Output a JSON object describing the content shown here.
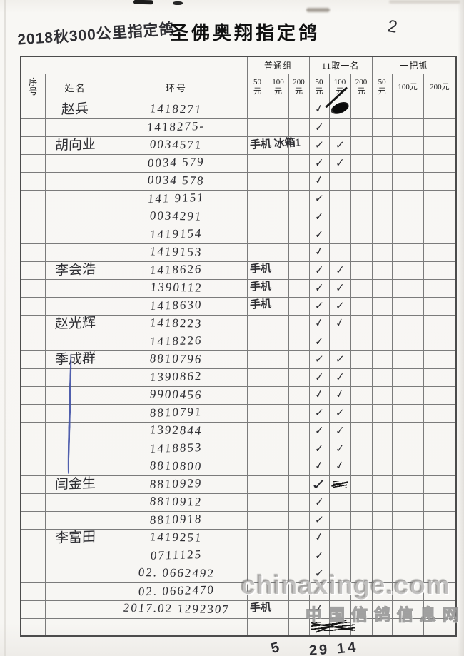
{
  "page": {
    "handwritten_title": "2018秋300公里指定鸽",
    "printed_title": "圣佛奥翔指定鸽",
    "page_number": "2"
  },
  "table": {
    "col_serial": "序号",
    "col_name": "姓名",
    "col_ring": "环号",
    "groups": [
      {
        "label": "普通组",
        "cols": [
          "50元",
          "100元",
          "200元"
        ]
      },
      {
        "label": "11取一名",
        "cols": [
          "50元",
          "100元",
          "200元"
        ]
      },
      {
        "label": "一把抓",
        "cols": [
          "50元",
          "100元",
          "200元"
        ]
      }
    ],
    "rows": [
      {
        "name": "赵兵",
        "ring": "1418271",
        "note": "",
        "marks": {
          "e50": "check",
          "e100": "blob"
        }
      },
      {
        "name": "",
        "ring": "1418275-",
        "note": "",
        "marks": {
          "e50": "check"
        }
      },
      {
        "name": "胡向业",
        "ring": "0034571",
        "note": "手机 冰箱1",
        "marks": {
          "e50": "check",
          "e100": "check"
        }
      },
      {
        "name": "",
        "ring": "0034 579",
        "note": "",
        "marks": {
          "e50": "check",
          "e100": "check"
        }
      },
      {
        "name": "",
        "ring": "0034 578",
        "note": "",
        "marks": {
          "e50": "check"
        }
      },
      {
        "name": "",
        "ring": "141 9151",
        "note": "",
        "marks": {
          "e50": "check"
        }
      },
      {
        "name": "",
        "ring": "0034291",
        "note": "",
        "marks": {
          "e50": "check"
        }
      },
      {
        "name": "",
        "ring": "1419154",
        "note": "",
        "marks": {
          "e50": "check"
        }
      },
      {
        "name": "",
        "ring": "1419153",
        "note": "",
        "marks": {
          "e50": "check"
        }
      },
      {
        "name": "李会浩",
        "ring": "1418626",
        "note": "手机",
        "marks": {
          "e50": "check",
          "e100": "check"
        }
      },
      {
        "name": "",
        "ring": "1390112",
        "note": "手机",
        "marks": {
          "e50": "check",
          "e100": "check"
        }
      },
      {
        "name": "",
        "ring": "1418630",
        "note": "手机",
        "marks": {
          "e50": "check",
          "e100": "check"
        }
      },
      {
        "name": "赵光辉",
        "ring": "1418223",
        "note": "",
        "marks": {
          "e50": "check",
          "e100": "check"
        }
      },
      {
        "name": "",
        "ring": "1418226",
        "note": "",
        "marks": {
          "e50": "check"
        }
      },
      {
        "name": "季成群",
        "ring": "8810796",
        "note": "",
        "marks": {
          "e50": "check",
          "e100": "check"
        }
      },
      {
        "name": "",
        "ring": "1390862",
        "note": "",
        "marks": {
          "e50": "check",
          "e100": "check"
        }
      },
      {
        "name": "",
        "ring": "9900456",
        "note": "",
        "marks": {
          "e50": "check",
          "e100": "check"
        }
      },
      {
        "name": "",
        "ring": "8810791",
        "note": "",
        "marks": {
          "e50": "check",
          "e100": "check"
        }
      },
      {
        "name": "",
        "ring": "1392844",
        "note": "",
        "marks": {
          "e50": "check",
          "e100": "check"
        }
      },
      {
        "name": "",
        "ring": "1418853",
        "note": "",
        "marks": {
          "e50": "check",
          "e100": "check"
        }
      },
      {
        "name": "",
        "ring": "8810800",
        "note": "",
        "marks": {
          "e50": "check",
          "e100": "check"
        }
      },
      {
        "name": "闫金生",
        "ring": "8810929",
        "note": "",
        "marks": {
          "e50": "check-bold",
          "e100": "scribble"
        }
      },
      {
        "name": "",
        "ring": "8810912",
        "note": "",
        "marks": {
          "e50": "check"
        }
      },
      {
        "name": "",
        "ring": "8810918",
        "note": "",
        "marks": {
          "e50": "check"
        }
      },
      {
        "name": "李富田",
        "ring": "1419251",
        "note": "",
        "marks": {
          "e50": "check"
        }
      },
      {
        "name": "",
        "ring": "0711125",
        "note": "",
        "marks": {
          "e50": "check"
        }
      },
      {
        "name": "",
        "ring": "02. 0662492",
        "note": "",
        "marks": {
          "e50": "check"
        }
      },
      {
        "name": "",
        "ring": "02. 0662470",
        "note": "",
        "marks": {
          "e50": "check"
        }
      },
      {
        "name": "",
        "ring": "2017.02 1292307",
        "note": "手机",
        "marks": {
          "e50": "check"
        }
      },
      {
        "name": "",
        "ring": "",
        "note": "",
        "marks": {
          "e50": "crossout"
        }
      }
    ]
  },
  "footer": {
    "phone_tally": "5",
    "fifty_yuan_tally": "29",
    "hundred_yuan_tally": "14"
  },
  "watermark": {
    "line1": "chinaxinge.com",
    "line2": "中国信鸽信息网"
  },
  "colors": {
    "pencil": "#2e2e33",
    "blue_pen": "#3f4fa6",
    "grid_line": "#7b7b7b",
    "paper": "#f7f6f3"
  }
}
